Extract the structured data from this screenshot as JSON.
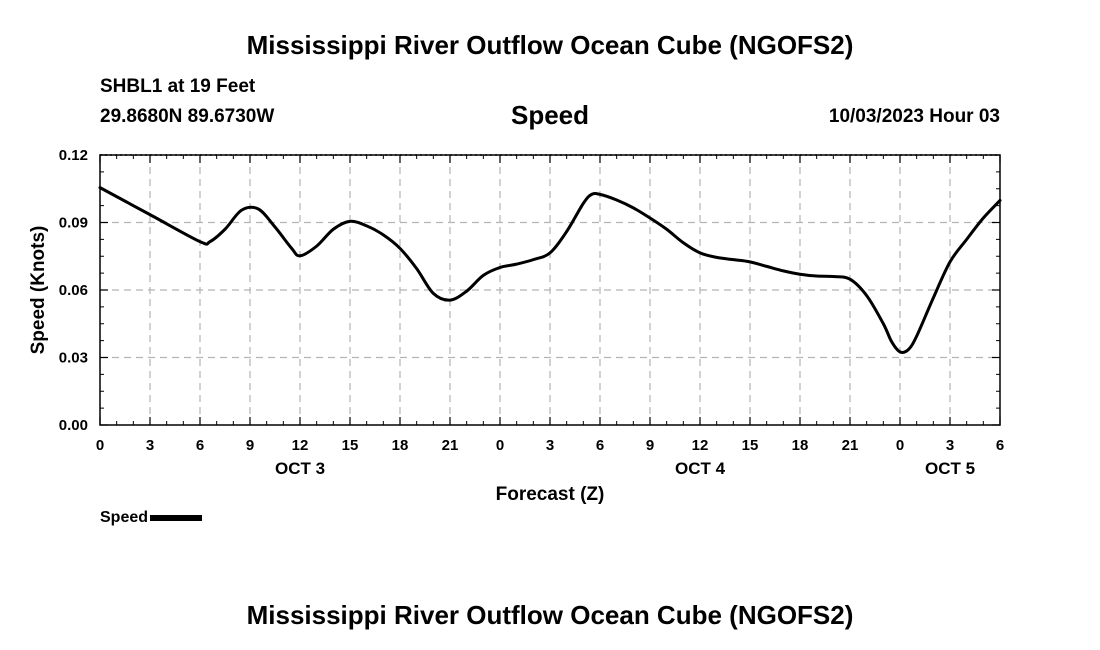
{
  "header": {
    "title": "Mississippi River Outflow Ocean Cube (NGOFS2)",
    "station": "SHBL1 at 19 Feet",
    "coords": "29.8680N  89.6730W",
    "variable": "Speed",
    "timestamp": "10/03/2023 Hour 03"
  },
  "footer": {
    "title": "Mississippi River Outflow Ocean Cube (NGOFS2)"
  },
  "legend": {
    "label": "Speed"
  },
  "colors": {
    "line": "#000000",
    "grid": "#b4b4b4"
  },
  "chart_data": {
    "type": "line",
    "title": "Speed",
    "xlabel": "Forecast (Z)",
    "ylabel": "Speed (Knots)",
    "xlim": [
      0,
      54
    ],
    "ylim": [
      0,
      0.12
    ],
    "grid": true,
    "y_ticks": [
      0.0,
      0.03,
      0.06,
      0.09,
      0.12
    ],
    "y_tick_labels": [
      "0.00",
      "0.03",
      "0.06",
      "0.09",
      "0.12"
    ],
    "x_ticks": [
      0,
      3,
      6,
      9,
      12,
      15,
      18,
      21,
      24,
      27,
      30,
      33,
      36,
      39,
      42,
      45,
      48,
      51,
      54
    ],
    "x_tick_labels": [
      "0",
      "3",
      "6",
      "9",
      "12",
      "15",
      "18",
      "21",
      "0",
      "3",
      "6",
      "9",
      "12",
      "15",
      "18",
      "21",
      "0",
      "3",
      "6"
    ],
    "date_labels": [
      {
        "label": "OCT 3",
        "x": 12
      },
      {
        "label": "OCT 4",
        "x": 36
      },
      {
        "label": "OCT 5",
        "x": 51
      }
    ],
    "series": [
      {
        "name": "Speed",
        "x": [
          0,
          3,
          6,
          6.6,
          7.5,
          8.5,
          9.5,
          10.5,
          11.5,
          12,
          13,
          14,
          15,
          16,
          17,
          18,
          19,
          20,
          21,
          22,
          23,
          24,
          25,
          26,
          27,
          28,
          29,
          29.5,
          30,
          31,
          32,
          33,
          34,
          35,
          36,
          37,
          38,
          39,
          40,
          41,
          42,
          43,
          44,
          45,
          46,
          47,
          47.5,
          48,
          48.5,
          49,
          50,
          51,
          52,
          53,
          54
        ],
        "values": [
          0.1055,
          0.0935,
          0.0815,
          0.0815,
          0.087,
          0.0955,
          0.096,
          0.088,
          0.0785,
          0.0752,
          0.0795,
          0.087,
          0.0905,
          0.0885,
          0.0845,
          0.0785,
          0.0695,
          0.0585,
          0.0555,
          0.0595,
          0.0665,
          0.07,
          0.0715,
          0.0735,
          0.0765,
          0.086,
          0.0985,
          0.1025,
          0.1025,
          0.1,
          0.0965,
          0.092,
          0.087,
          0.081,
          0.0765,
          0.0745,
          0.0735,
          0.0725,
          0.0705,
          0.0685,
          0.067,
          0.0662,
          0.066,
          0.0648,
          0.0575,
          0.045,
          0.037,
          0.0325,
          0.0335,
          0.0395,
          0.0565,
          0.0725,
          0.0825,
          0.092,
          0.0998
        ]
      }
    ]
  }
}
